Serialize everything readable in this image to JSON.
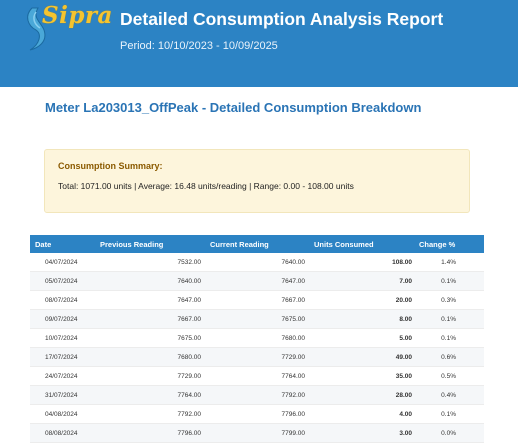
{
  "header": {
    "logo_text": "Sipra",
    "title": "Detailed Consumption Analysis Report",
    "period_label": "Period:",
    "period_value": "10/10/2023 - 10/09/2025",
    "background_color": "#2c83c4"
  },
  "meter_title": "Meter La203013_OffPeak - Detailed Consumption Breakdown",
  "summary": {
    "title": "Consumption Summary:",
    "text": "Total: 1071.00 units | Average: 16.48 units/reading | Range: 0.00 - 108.00 units"
  },
  "table": {
    "headers": [
      "Date",
      "Previous Reading",
      "Current Reading",
      "Units Consumed",
      "Change %"
    ],
    "rows": [
      {
        "date": "04/07/2024",
        "previous": "7532.00",
        "current": "7640.00",
        "units": "108.00",
        "units_color": "red",
        "change": "1.4%"
      },
      {
        "date": "05/07/2024",
        "previous": "7640.00",
        "current": "7647.00",
        "units": "7.00",
        "units_color": "green",
        "change": "0.1%"
      },
      {
        "date": "08/07/2024",
        "previous": "7647.00",
        "current": "7667.00",
        "units": "20.00",
        "units_color": "black",
        "change": "0.3%"
      },
      {
        "date": "09/07/2024",
        "previous": "7667.00",
        "current": "7675.00",
        "units": "8.00",
        "units_color": "green",
        "change": "0.1%"
      },
      {
        "date": "10/07/2024",
        "previous": "7675.00",
        "current": "7680.00",
        "units": "5.00",
        "units_color": "green",
        "change": "0.1%"
      },
      {
        "date": "17/07/2024",
        "previous": "7680.00",
        "current": "7729.00",
        "units": "49.00",
        "units_color": "red",
        "change": "0.6%"
      },
      {
        "date": "24/07/2024",
        "previous": "7729.00",
        "current": "7764.00",
        "units": "35.00",
        "units_color": "red",
        "change": "0.5%"
      },
      {
        "date": "31/07/2024",
        "previous": "7764.00",
        "current": "7792.00",
        "units": "28.00",
        "units_color": "red",
        "change": "0.4%"
      },
      {
        "date": "04/08/2024",
        "previous": "7792.00",
        "current": "7796.00",
        "units": "4.00",
        "units_color": "green",
        "change": "0.1%"
      },
      {
        "date": "08/08/2024",
        "previous": "7796.00",
        "current": "7799.00",
        "units": "3.00",
        "units_color": "green",
        "change": "0.0%"
      }
    ]
  },
  "colors": {
    "accent": "#2c83c4",
    "title_blue": "#2a74b5",
    "summary_bg": "#fdf5dc",
    "red": "#cc1122",
    "green": "#1e9b3a"
  }
}
